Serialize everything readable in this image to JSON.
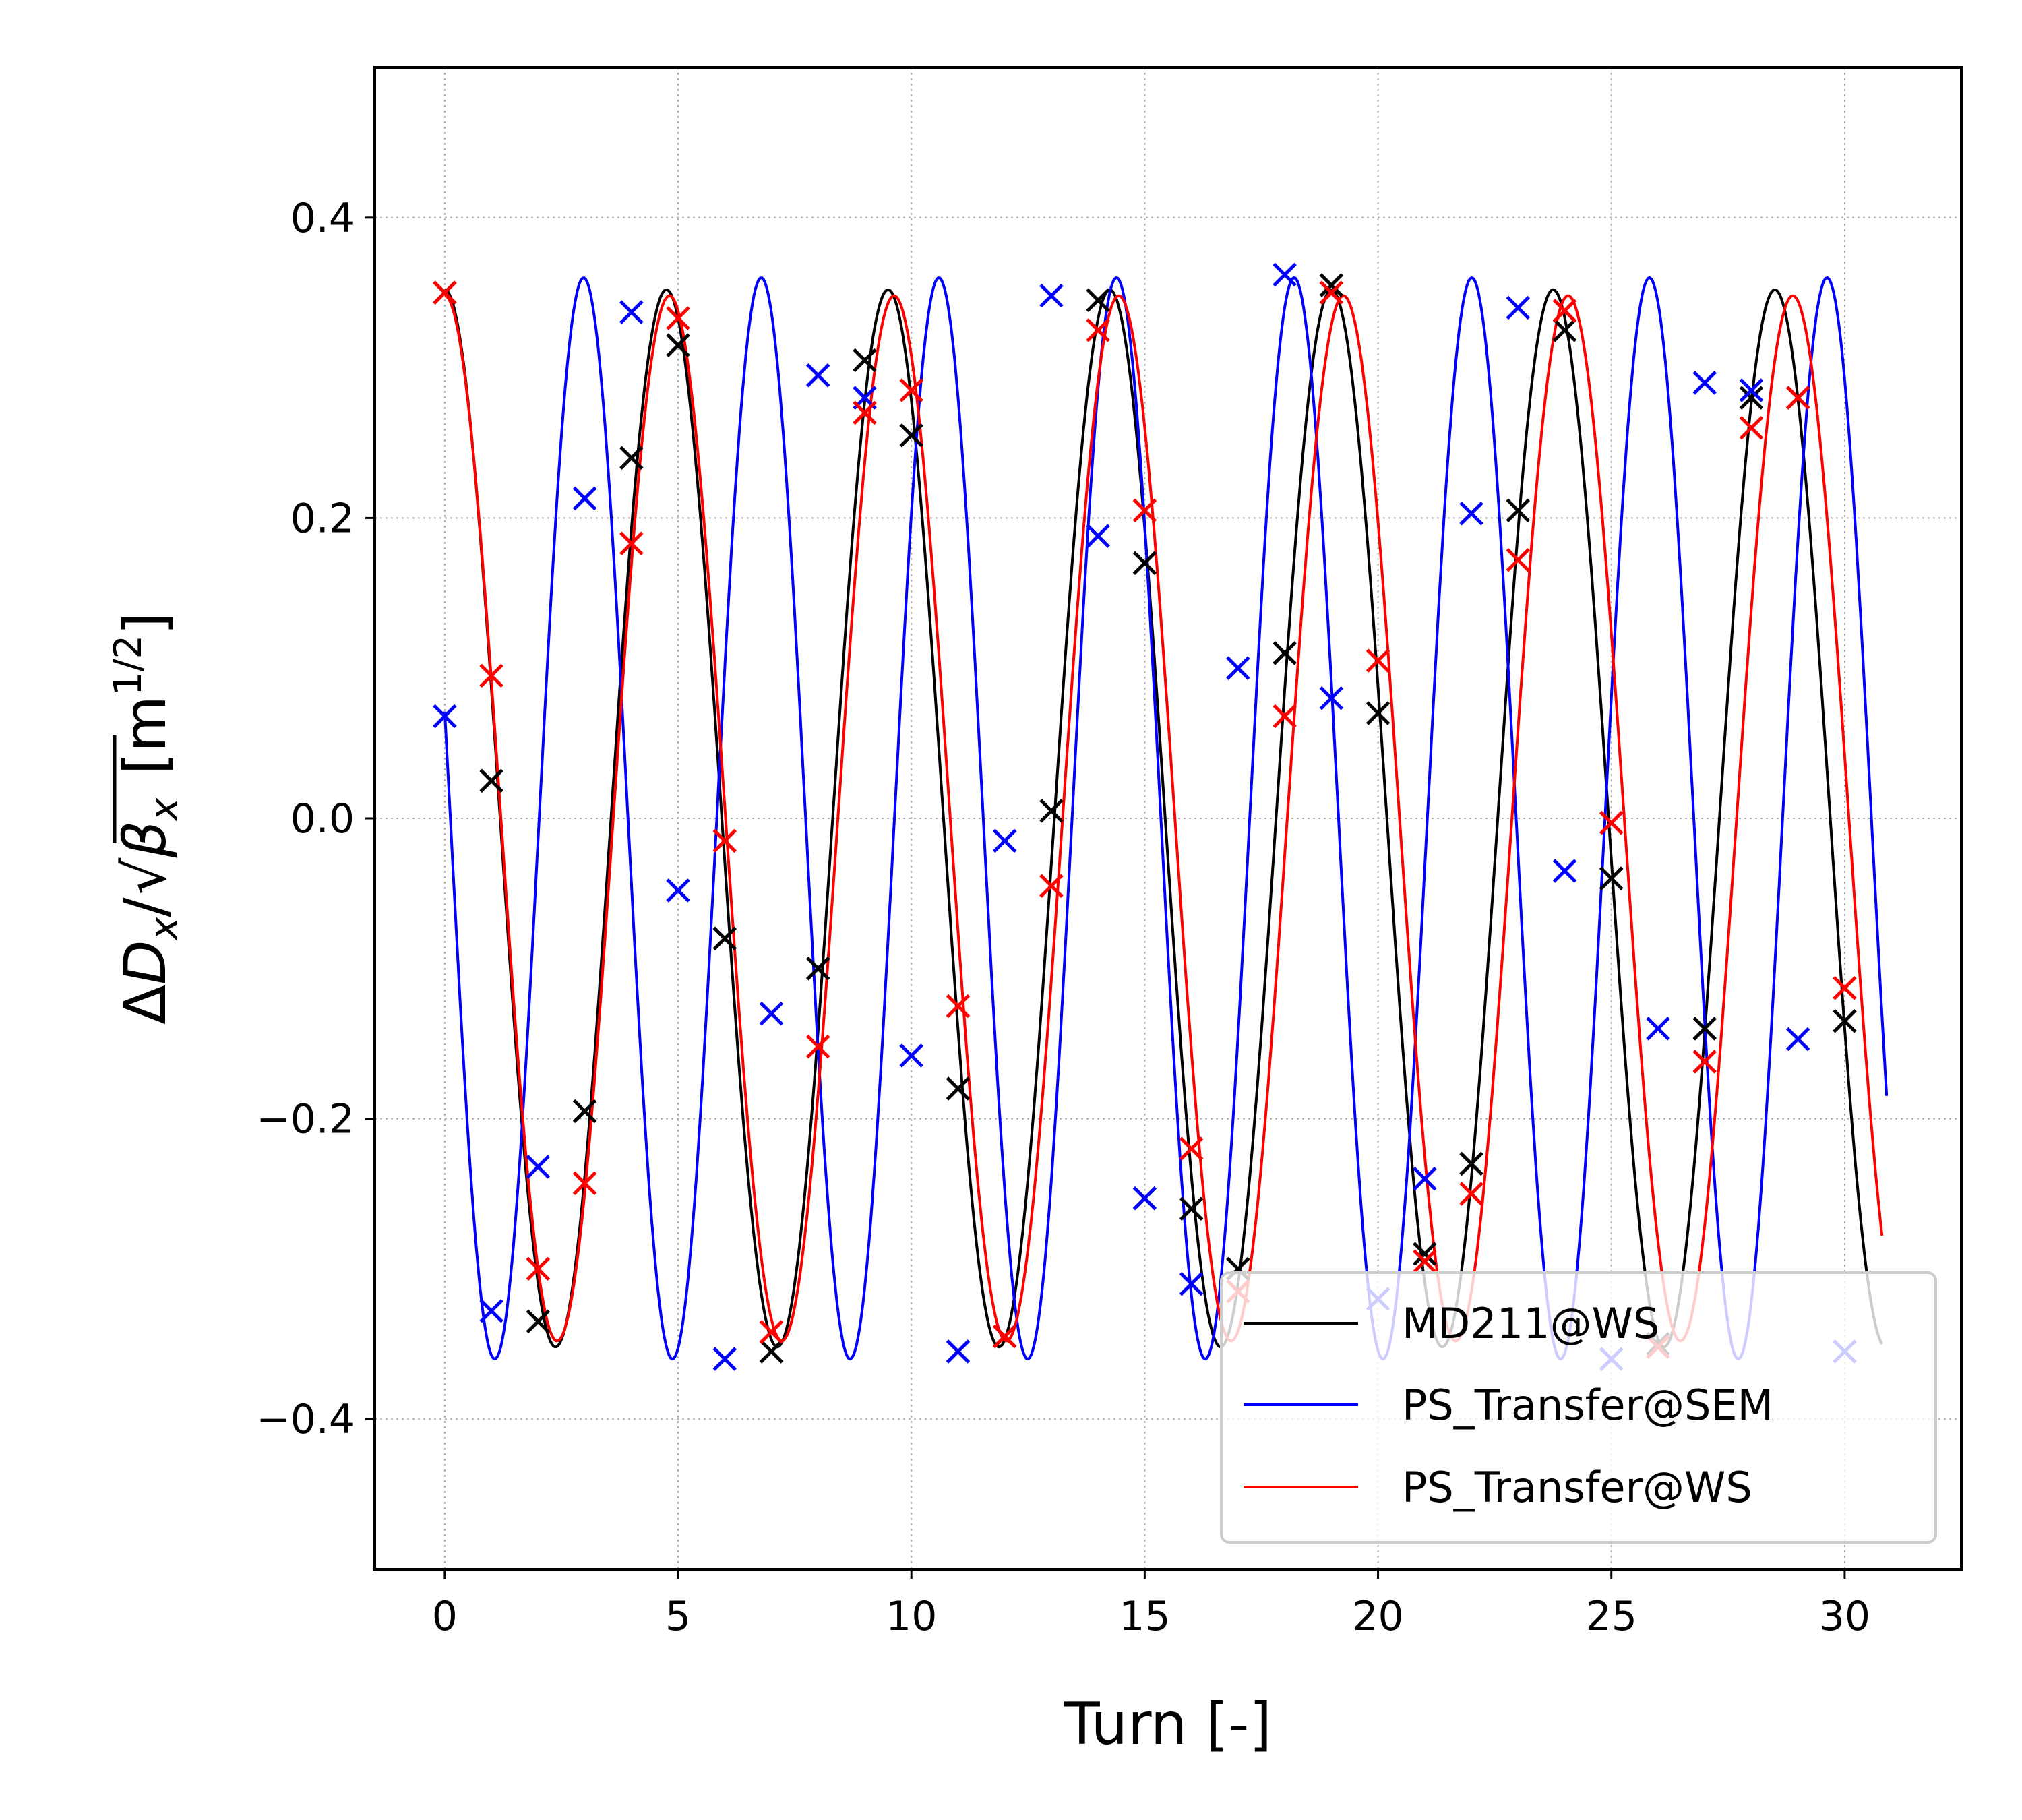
{
  "chart_data": {
    "type": "line",
    "title": "",
    "xlabel": "Turn [-]",
    "ylabel": {
      "delta": "Δ",
      "numerator": "D",
      "numerator_sub": "x",
      "slash": "/",
      "radicand": "β",
      "radicand_sub": "x",
      "unit_open": "[m",
      "unit_exp": "1/2",
      "unit_close": "]"
    },
    "xlim": [
      -1.5,
      32.5
    ],
    "ylim": [
      -0.5,
      0.5
    ],
    "xticks": [
      0,
      5,
      10,
      15,
      20,
      25,
      30
    ],
    "xtick_labels": [
      "0",
      "5",
      "10",
      "15",
      "20",
      "25",
      "30"
    ],
    "yticks": [
      -0.4,
      -0.2,
      0.0,
      0.2,
      0.4
    ],
    "ytick_labels": [
      "−0.4",
      "−0.2",
      "0.0",
      "0.2",
      "0.4"
    ],
    "grid": true,
    "legend_position": "bottom-right",
    "series": [
      {
        "name": "MD211@WS",
        "color": "#000000",
        "fit": {
          "amplitude": 0.352,
          "tune": 0.2105,
          "phase": 0.0
        },
        "curve_x_range": [
          0,
          30.8
        ],
        "points_x": [
          0,
          1,
          2,
          3,
          4,
          5,
          6,
          7,
          8,
          9,
          10,
          11,
          12,
          13,
          14,
          15,
          16,
          17,
          18,
          19,
          20,
          21,
          22,
          23,
          24,
          25,
          26,
          27,
          28,
          29,
          30
        ],
        "points_y": [
          0.35,
          0.025,
          -0.335,
          -0.195,
          0.24,
          0.315,
          -0.08,
          -0.355,
          -0.1,
          0.305,
          0.255,
          -0.18,
          -0.345,
          0.005,
          0.345,
          0.17,
          -0.26,
          -0.3,
          0.11,
          0.355,
          0.07,
          -0.29,
          -0.23,
          0.205,
          0.325,
          -0.04,
          -0.35,
          -0.14,
          0.28,
          0.28,
          -0.135
        ]
      },
      {
        "name": "PS_Transfer@SEM",
        "color": "#0000ff",
        "fit": {
          "amplitude": 0.36,
          "tune": 0.2627,
          "phase": 1.372
        },
        "curve_x_range": [
          0,
          30.9
        ],
        "points_x": [
          0,
          1,
          2,
          3,
          4,
          5,
          6,
          7,
          8,
          9,
          10,
          11,
          12,
          13,
          14,
          15,
          16,
          17,
          18,
          19,
          20,
          21,
          22,
          23,
          24,
          25,
          26,
          27,
          28,
          29,
          30
        ],
        "points_y": [
          0.068,
          -0.328,
          -0.232,
          0.213,
          0.337,
          -0.048,
          -0.36,
          -0.13,
          0.295,
          0.28,
          -0.158,
          -0.355,
          -0.015,
          0.348,
          0.188,
          -0.253,
          -0.31,
          0.1,
          0.362,
          0.08,
          -0.32,
          -0.24,
          0.203,
          0.34,
          -0.035,
          -0.36,
          -0.14,
          0.29,
          0.285,
          -0.147,
          -0.355
        ]
      },
      {
        "name": "PS_Transfer@WS",
        "color": "#ff0000",
        "fit": {
          "amplitude": 0.348,
          "tune": 0.2077,
          "phase": 0.0
        },
        "curve_x_range": [
          0,
          30.8
        ],
        "points_x": [
          0,
          1,
          2,
          3,
          4,
          5,
          6,
          7,
          8,
          9,
          10,
          11,
          12,
          13,
          14,
          15,
          16,
          17,
          18,
          19,
          20,
          21,
          22,
          23,
          24,
          25,
          26,
          27,
          28,
          29,
          30
        ],
        "points_y": [
          0.35,
          0.095,
          -0.3,
          -0.243,
          0.183,
          0.333,
          -0.015,
          -0.342,
          -0.152,
          0.27,
          0.285,
          -0.125,
          -0.345,
          -0.045,
          0.325,
          0.205,
          -0.22,
          -0.315,
          0.068,
          0.35,
          0.105,
          -0.295,
          -0.25,
          0.172,
          0.338,
          -0.003,
          -0.352,
          -0.162,
          0.26,
          0.28,
          -0.113
        ]
      }
    ]
  }
}
